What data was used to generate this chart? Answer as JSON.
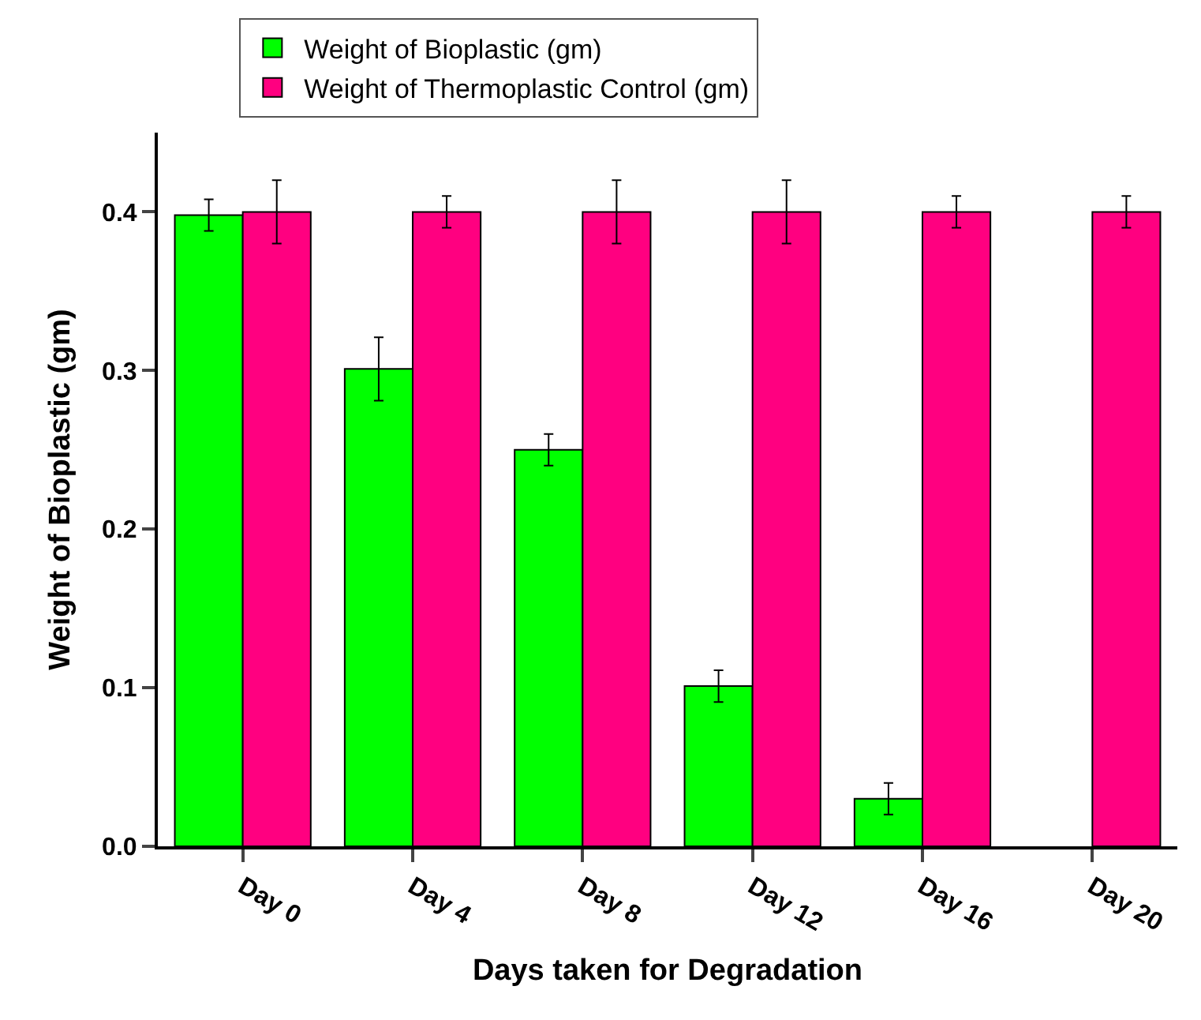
{
  "chart_data": {
    "type": "bar",
    "xlabel": "Days taken for Degradation",
    "ylabel": "Weight of Bioplastic (gm)",
    "categories": [
      "Day 0",
      "Day 4",
      "Day 8",
      "Day 12",
      "Day 16",
      "Day 20"
    ],
    "series": [
      {
        "name": "Weight of Bioplastic (gm)",
        "color": "#00ff00",
        "values": [
          0.398,
          0.301,
          0.25,
          0.101,
          0.03,
          null
        ],
        "errors": [
          0.01,
          0.02,
          0.01,
          0.01,
          0.01,
          null
        ]
      },
      {
        "name": "Weight of Thermoplastic Control (gm)",
        "color": "#ff0080",
        "values": [
          0.4,
          0.4,
          0.4,
          0.4,
          0.4,
          0.4
        ],
        "errors": [
          0.02,
          0.01,
          0.02,
          0.02,
          0.01,
          0.01
        ]
      }
    ],
    "ylim": [
      0,
      0.45
    ],
    "yticks": [
      {
        "value": 0,
        "label": "0.0"
      },
      0.1,
      0.2,
      0.3,
      0.4
    ],
    "legend": "top"
  }
}
